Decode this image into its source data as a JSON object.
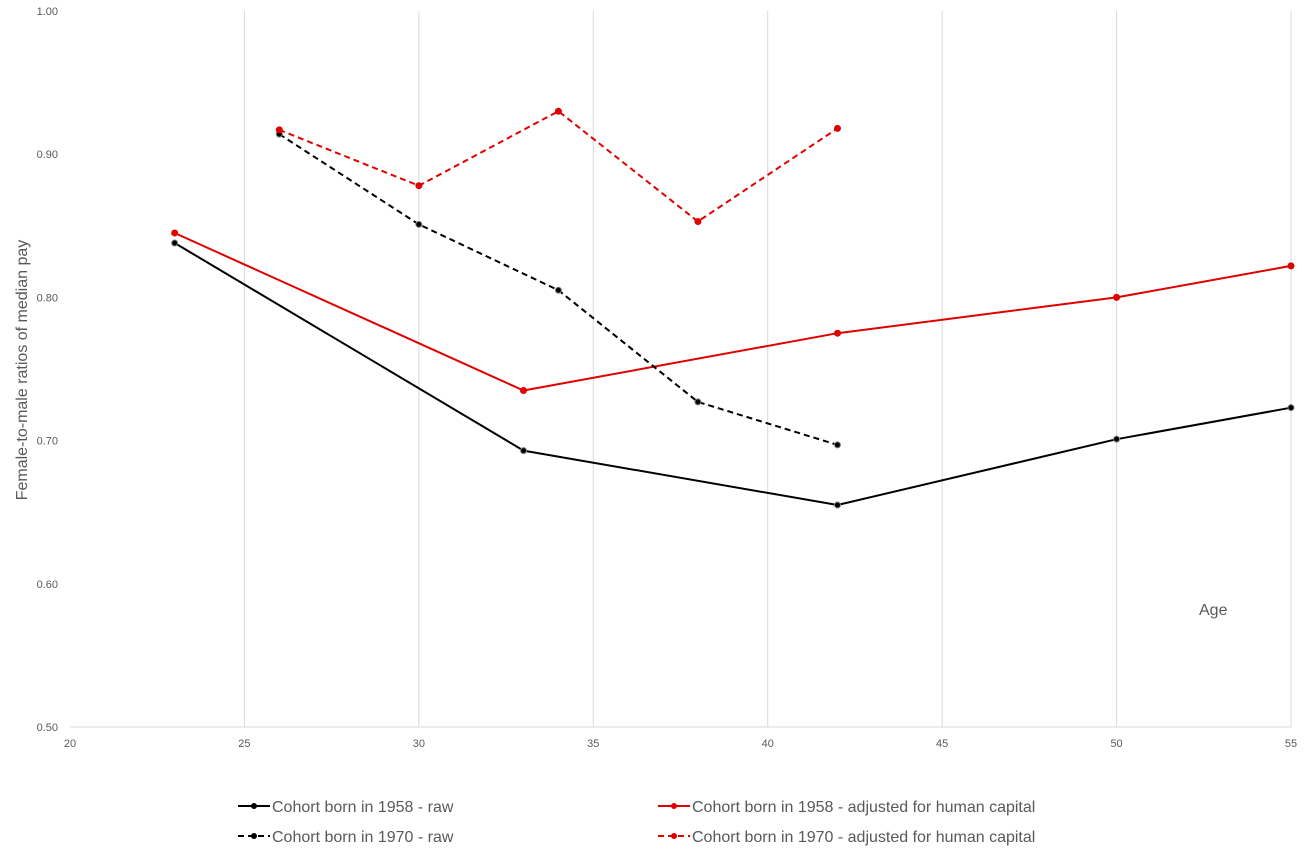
{
  "chart_data": {
    "type": "line",
    "title": "",
    "xlabel": "",
    "ylabel": "Female-to-male ratios of median pay",
    "annotation": "Age",
    "xlim": [
      20,
      55
    ],
    "ylim": [
      0.5,
      1.0
    ],
    "xticks": [
      20,
      25,
      30,
      35,
      40,
      45,
      50,
      55
    ],
    "yticks": [
      0.5,
      0.6,
      0.7,
      0.8,
      0.9,
      1.0
    ],
    "ytick_labels": [
      "0.50",
      "0.60",
      "0.70",
      "0.80",
      "0.90",
      "1.00"
    ],
    "vertical_grid": true,
    "legend_position": "bottom",
    "series": [
      {
        "name": "Cohort born in 1958 - raw",
        "color": "#000000",
        "dash": "solid",
        "x": [
          23,
          33,
          42,
          50,
          55
        ],
        "y": [
          0.838,
          0.693,
          0.655,
          0.701,
          0.723
        ]
      },
      {
        "name": "Cohort born in 1958 - adjusted for human capital",
        "color": "#e00000",
        "dash": "solid",
        "x": [
          23,
          33,
          42,
          50,
          55
        ],
        "y": [
          0.845,
          0.735,
          0.775,
          0.8,
          0.822
        ]
      },
      {
        "name": "Cohort born in 1970 - raw",
        "color": "#000000",
        "dash": "dashed",
        "x": [
          26,
          30,
          34,
          38,
          42
        ],
        "y": [
          0.914,
          0.851,
          0.805,
          0.727,
          0.697
        ]
      },
      {
        "name": "Cohort born in 1970 - adjusted for human capital",
        "color": "#e00000",
        "dash": "dashed",
        "x": [
          26,
          30,
          34,
          38,
          42
        ],
        "y": [
          0.917,
          0.878,
          0.93,
          0.853,
          0.918
        ]
      }
    ]
  }
}
